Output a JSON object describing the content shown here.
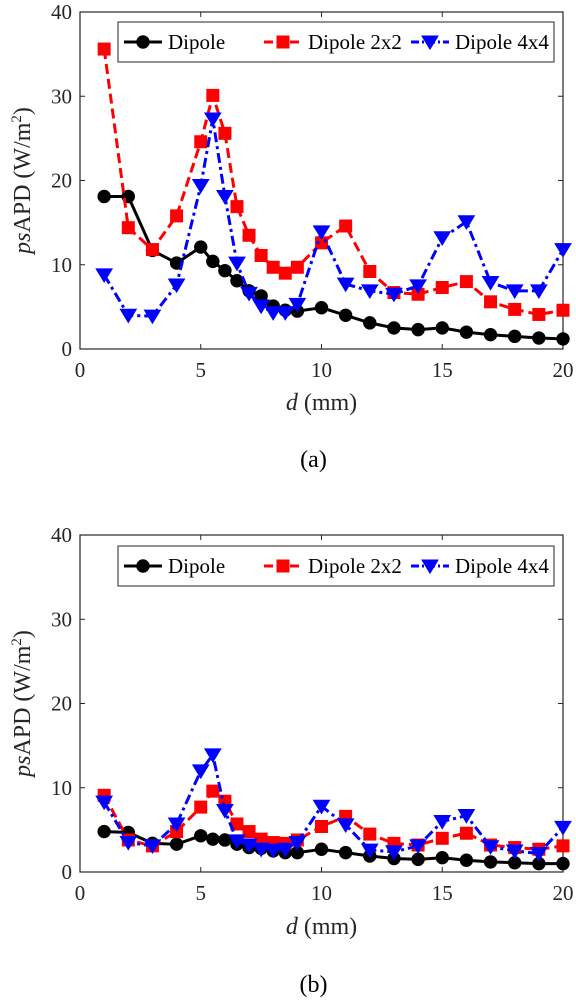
{
  "colors": {
    "dipole": "#000000",
    "dipole2x2": "#ff0000",
    "dipole4x4": "#0000ff"
  },
  "chart_data": [
    {
      "type": "line",
      "caption": "(a)",
      "xlabel_italic": "d",
      "xlabel_rest": " (mm)",
      "ylabel_italic": "ps",
      "ylabel_rest": "APD (W/m",
      "ylabel_sup": "2",
      "ylabel_close": ")",
      "xlim": [
        0,
        20
      ],
      "ylim": [
        0,
        40
      ],
      "xticks": [
        "0",
        "5",
        "10",
        "15",
        "20"
      ],
      "yticks": [
        "0",
        "10",
        "20",
        "30",
        "40"
      ],
      "grid": false,
      "legend_position": "top",
      "series": [
        {
          "name": "Dipole",
          "marker": "circle",
          "linestyle": "solid",
          "x": [
            1,
            2,
            3,
            4,
            5,
            5.5,
            6,
            6.5,
            7,
            7.5,
            8,
            8.5,
            9,
            10,
            11,
            12,
            13,
            14,
            15,
            16,
            17,
            18,
            19,
            20
          ],
          "y": [
            18.1,
            18.1,
            11.7,
            10.2,
            12.1,
            10.4,
            9.3,
            8.1,
            6.9,
            6.3,
            5.1,
            4.6,
            4.5,
            4.9,
            4.0,
            3.1,
            2.5,
            2.3,
            2.5,
            2.0,
            1.7,
            1.5,
            1.3,
            1.2
          ]
        },
        {
          "name": "Dipole 2x2",
          "marker": "square",
          "linestyle": "dashed",
          "x": [
            1,
            2,
            3,
            4,
            5,
            5.5,
            6,
            6.5,
            7,
            7.5,
            8,
            8.5,
            9,
            10,
            11,
            12,
            13,
            14,
            15,
            16,
            17,
            18,
            19,
            20
          ],
          "y": [
            35.6,
            14.4,
            11.8,
            15.8,
            24.6,
            30.1,
            25.6,
            16.9,
            13.5,
            11.1,
            9.7,
            9.0,
            9.7,
            12.6,
            14.6,
            9.2,
            6.7,
            6.5,
            7.3,
            8.0,
            5.6,
            4.7,
            4.1,
            4.6
          ]
        },
        {
          "name": "Dipole 4x4",
          "marker": "triangle-down",
          "linestyle": "dashdot",
          "x": [
            1,
            2,
            3,
            4,
            5,
            5.5,
            6,
            6.5,
            7,
            7.5,
            8,
            8.5,
            9,
            10,
            11,
            12,
            13,
            14,
            15,
            16,
            17,
            18,
            19,
            20
          ],
          "y": [
            8.8,
            4.0,
            3.9,
            7.6,
            19.4,
            27.3,
            18.1,
            10.2,
            6.6,
            5.1,
            4.3,
            4.3,
            5.3,
            13.9,
            7.7,
            6.9,
            6.5,
            7.5,
            13.2,
            15.1,
            7.9,
            6.9,
            6.9,
            11.8
          ]
        }
      ]
    },
    {
      "type": "line",
      "caption": "(b)",
      "xlabel_italic": "d",
      "xlabel_rest": " (mm)",
      "ylabel_italic": "ps",
      "ylabel_rest": "APD (W/m",
      "ylabel_sup": "2",
      "ylabel_close": ")",
      "xlim": [
        0,
        20
      ],
      "ylim": [
        0,
        40
      ],
      "xticks": [
        "0",
        "5",
        "10",
        "15",
        "20"
      ],
      "yticks": [
        "0",
        "10",
        "20",
        "30",
        "40"
      ],
      "grid": false,
      "legend_position": "top",
      "series": [
        {
          "name": "Dipole",
          "marker": "circle",
          "linestyle": "solid",
          "x": [
            1,
            2,
            3,
            4,
            5,
            5.5,
            6,
            6.5,
            7,
            7.5,
            8,
            8.5,
            9,
            10,
            11,
            12,
            13,
            14,
            15,
            16,
            17,
            18,
            19,
            20
          ],
          "y": [
            4.8,
            4.7,
            3.4,
            3.3,
            4.3,
            3.9,
            3.8,
            3.3,
            2.9,
            2.8,
            2.5,
            2.3,
            2.3,
            2.7,
            2.3,
            1.9,
            1.6,
            1.5,
            1.7,
            1.4,
            1.2,
            1.1,
            1.0,
            1.0
          ]
        },
        {
          "name": "Dipole 2x2",
          "marker": "square",
          "linestyle": "dashed",
          "x": [
            1,
            2,
            3,
            4,
            5,
            5.5,
            6,
            6.5,
            7,
            7.5,
            8,
            8.5,
            9,
            10,
            11,
            12,
            13,
            14,
            15,
            16,
            17,
            18,
            19,
            20
          ],
          "y": [
            9.1,
            3.8,
            3.1,
            4.8,
            7.7,
            9.6,
            8.4,
            5.7,
            4.8,
            3.9,
            3.5,
            3.4,
            3.8,
            5.4,
            6.6,
            4.5,
            3.4,
            3.2,
            4.0,
            4.6,
            3.2,
            2.9,
            2.7,
            3.1
          ]
        },
        {
          "name": "Dipole 4x4",
          "marker": "triangle-down",
          "linestyle": "dashdot",
          "x": [
            1,
            2,
            3,
            4,
            5,
            5.5,
            6,
            6.5,
            7,
            7.5,
            8,
            8.5,
            9,
            10,
            11,
            12,
            13,
            14,
            15,
            16,
            17,
            18,
            19,
            20
          ],
          "y": [
            8.3,
            3.5,
            3.1,
            5.7,
            12.0,
            13.9,
            7.3,
            3.7,
            3.2,
            2.7,
            2.6,
            2.7,
            3.5,
            7.8,
            5.6,
            2.6,
            2.4,
            3.1,
            6.0,
            6.7,
            3.0,
            2.5,
            2.2,
            5.3
          ]
        }
      ]
    }
  ]
}
